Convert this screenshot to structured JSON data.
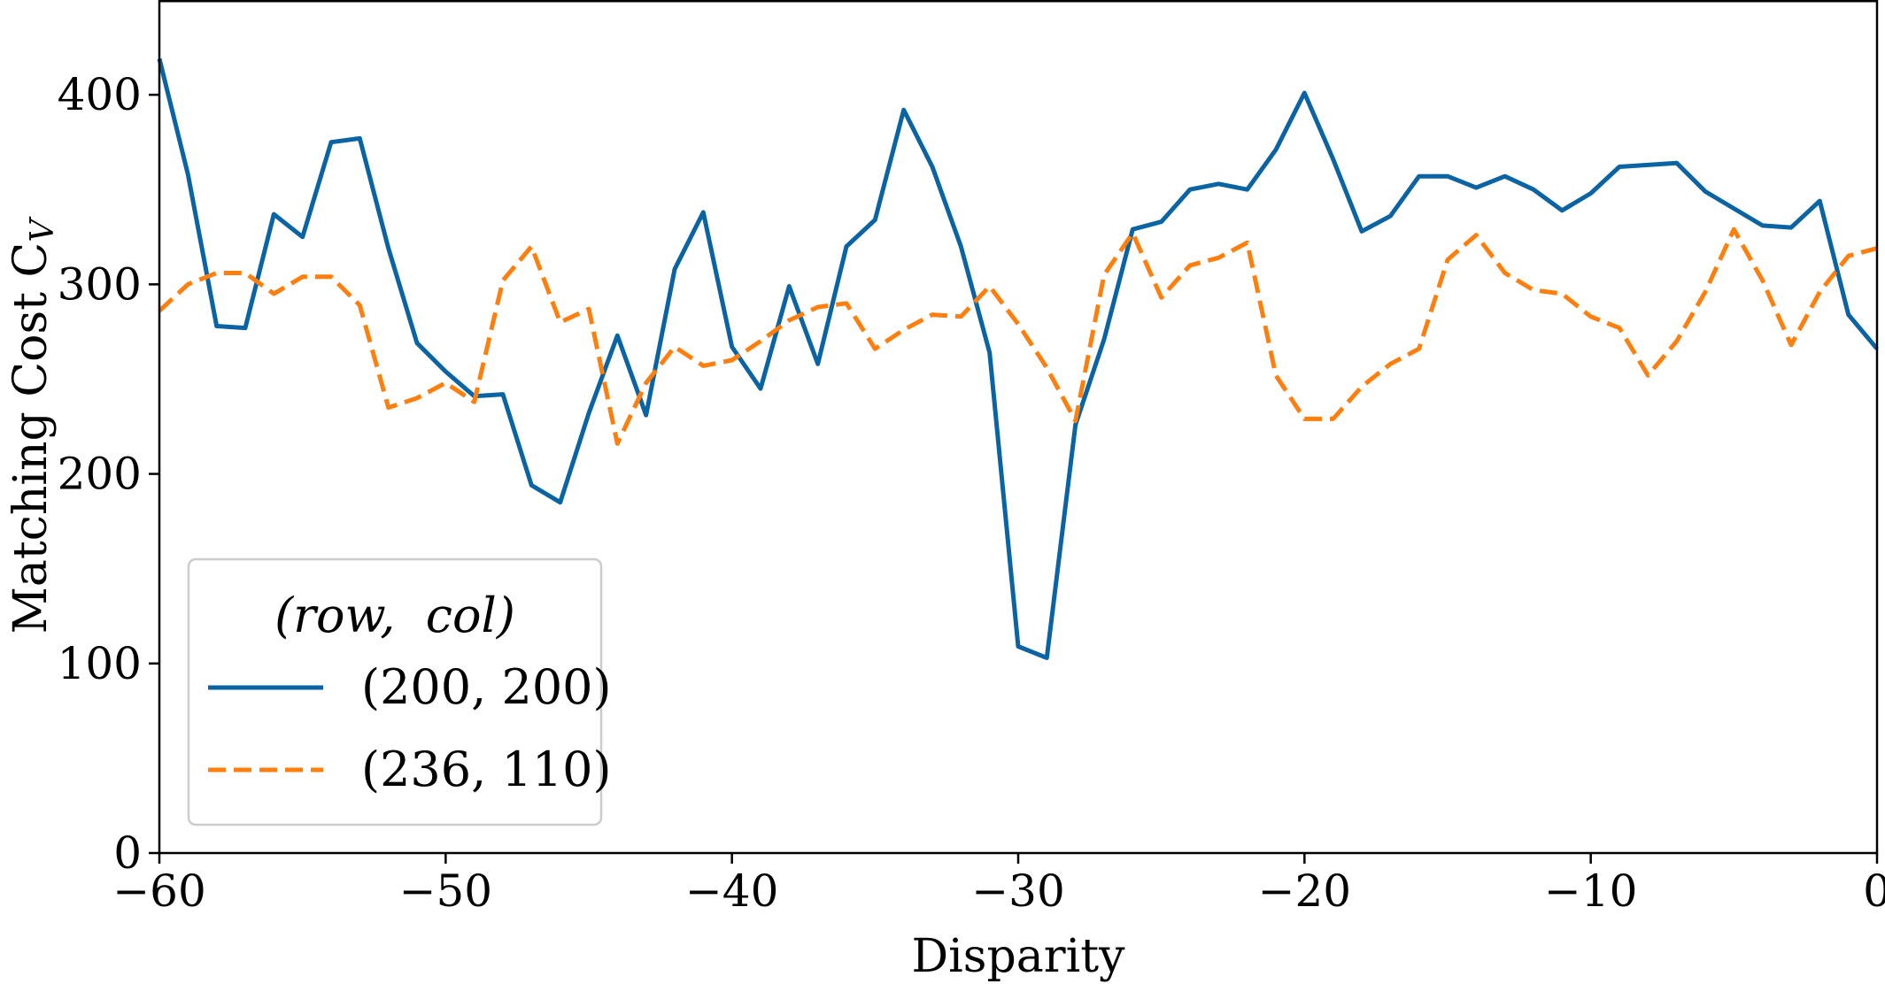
{
  "chart_data": {
    "type": "line",
    "title": "",
    "xlabel": "Disparity",
    "ylabel": "Matching Cost C",
    "ylabel_subscript": "V",
    "xlim": [
      -60,
      0
    ],
    "ylim": [
      0,
      450
    ],
    "xticks": [
      -60,
      -50,
      -40,
      -30,
      -20,
      -10,
      0
    ],
    "xtick_labels": [
      "−60",
      "−50",
      "−40",
      "−30",
      "−20",
      "−10",
      "0"
    ],
    "yticks": [
      0,
      100,
      200,
      300,
      400
    ],
    "ytick_labels": [
      "0",
      "100",
      "200",
      "300",
      "400"
    ],
    "grid": false,
    "legend": {
      "title": "(row,  col)",
      "placement": "lower-left"
    },
    "x": [
      -60,
      -59,
      -58,
      -57,
      -56,
      -55,
      -54,
      -53,
      -52,
      -51,
      -50,
      -49,
      -48,
      -47,
      -46,
      -45,
      -44,
      -43,
      -42,
      -41,
      -40,
      -39,
      -38,
      -37,
      -36,
      -35,
      -34,
      -33,
      -32,
      -31,
      -30,
      -29,
      -28,
      -27,
      -26,
      -25,
      -24,
      -23,
      -22,
      -21,
      -20,
      -19,
      -18,
      -17,
      -16,
      -15,
      -14,
      -13,
      -12,
      -11,
      -10,
      -9,
      -8,
      -7,
      -6,
      -5,
      -4,
      -3,
      -2,
      -1,
      0
    ],
    "series": [
      {
        "name": "(200, 200)",
        "color": "#0a64a4",
        "style": "solid",
        "values": [
          419,
          358,
          278,
          277,
          337,
          325,
          375,
          377,
          319,
          269,
          254,
          241,
          242,
          194,
          185,
          232,
          273,
          231,
          308,
          338,
          267,
          245,
          299,
          258,
          320,
          334,
          392,
          362,
          320,
          264,
          109,
          103,
          226,
          271,
          329,
          333,
          350,
          353,
          350,
          371,
          401,
          366,
          328,
          336,
          357,
          357,
          351,
          357,
          350,
          339,
          348,
          362,
          363,
          364,
          349,
          340,
          331,
          330,
          344,
          284,
          266
        ]
      },
      {
        "name": "(236, 110)",
        "color": "#ff7f0e",
        "style": "dashed",
        "values": [
          286,
          300,
          306,
          306,
          295,
          304,
          304,
          289,
          235,
          240,
          248,
          238,
          302,
          320,
          280,
          287,
          216,
          248,
          267,
          257,
          260,
          270,
          281,
          288,
          290,
          266,
          276,
          284,
          283,
          299,
          279,
          256,
          228,
          305,
          327,
          293,
          310,
          314,
          322,
          252,
          229,
          229,
          246,
          258,
          266,
          313,
          326,
          306,
          297,
          295,
          283,
          277,
          252,
          270,
          296,
          329,
          302,
          268,
          296,
          315,
          319
        ]
      }
    ]
  }
}
